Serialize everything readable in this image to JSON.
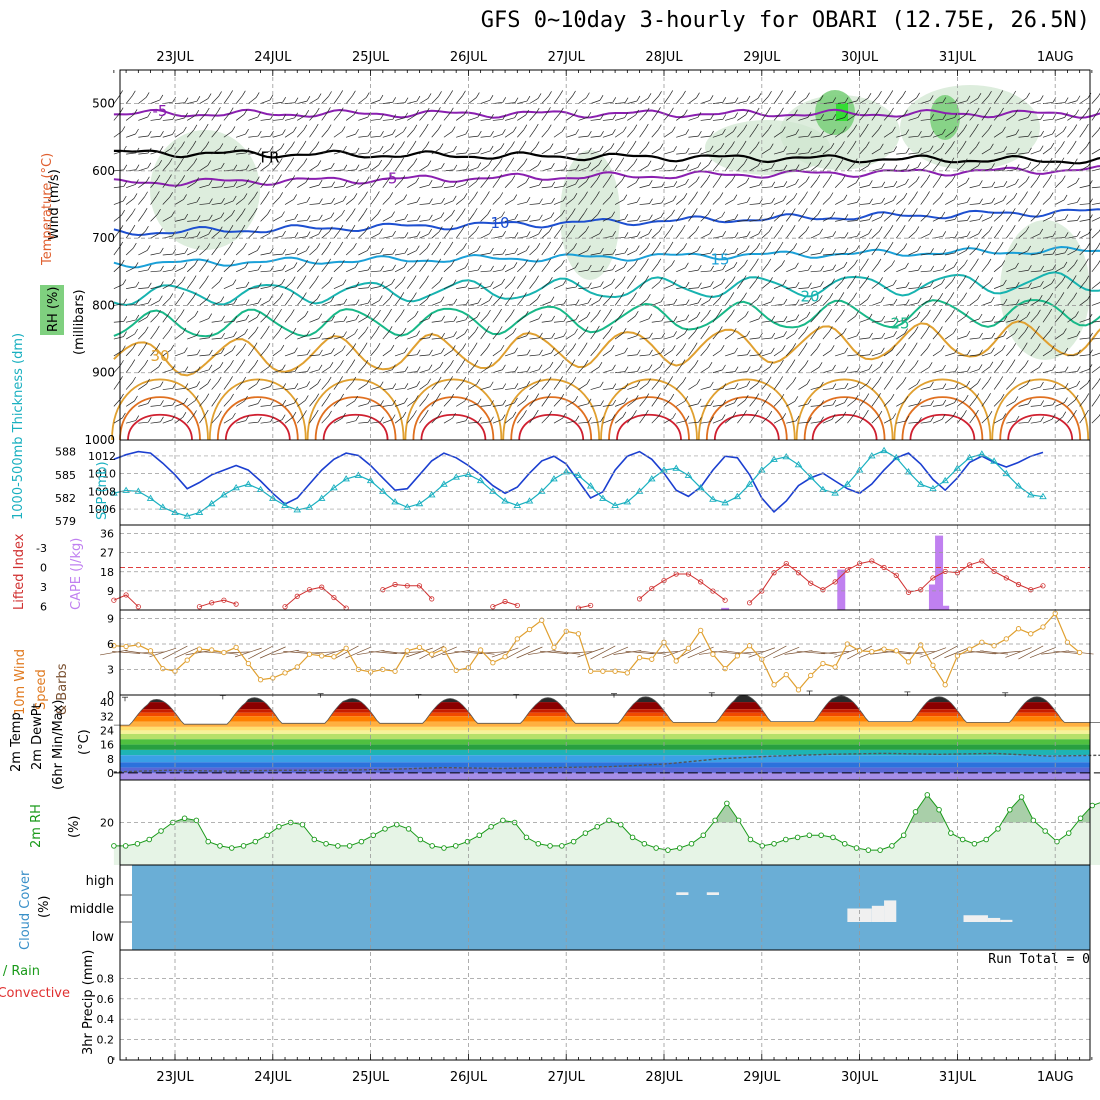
{
  "title": "GFS 0~10day 3-hourly for OBARI (12.75E, 26.5N)",
  "run_total": "Run Total = 0",
  "dates": [
    "23JUL",
    "24JUL",
    "25JUL",
    "26JUL",
    "27JUL",
    "28JUL",
    "29JUL",
    "30JUL",
    "31JUL",
    "1AUG"
  ],
  "chart_data": [
    {
      "type": "line",
      "panel": "upper-air",
      "labels": {
        "wind": "Wind (m/s)",
        "temperature": "Temperature (°C)",
        "pressure": "(millibars)",
        "rh": "RH (%)"
      },
      "ylim": [
        1000,
        450
      ],
      "yticks": [
        500,
        600,
        700,
        800,
        900,
        1000
      ],
      "contour_labels": [
        "-5",
        "FR",
        "10",
        "15",
        "20",
        "25",
        "30"
      ],
      "isotherms": [
        {
          "name": "-5",
          "color": "#8a1fb0",
          "p_start": 515,
          "p_end": 515
        },
        {
          "name": "FR",
          "color": "#000000",
          "p_start": 573,
          "p_end": 585
        },
        {
          "name": "-5",
          "color": "#8a1fb0",
          "p_start": 618,
          "p_end": 598
        },
        {
          "name": "10",
          "color": "#1d4fd0",
          "p_start": 692,
          "p_end": 660
        },
        {
          "name": "15",
          "color": "#1aa0d8",
          "p_start": 738,
          "p_end": 718
        },
        {
          "name": "20",
          "color": "#17b3b0",
          "p_start": 785,
          "p_end": 765
        },
        {
          "name": "25",
          "color": "#18b888",
          "p_start": 830,
          "p_end": 808
        },
        {
          "name": "30",
          "color": "#e0a030",
          "p_start": 880,
          "p_end": 848
        }
      ]
    },
    {
      "type": "line",
      "panel": "thickness-slp",
      "labels": {
        "thickness": "1000-500mb Thickness (dm)",
        "slp": "SLP (mb)"
      },
      "thickness_ticks": [
        579,
        582,
        585,
        588
      ],
      "slp_ticks": [
        1006,
        1008,
        1010,
        1012
      ],
      "series": [
        {
          "name": "1000-500mb Thickness (dm)",
          "color": "#1b3fd0",
          "values": [
            587.0,
            587.6,
            588.0,
            587.8,
            586.5,
            585.0,
            583.2,
            584.0,
            585.0,
            585.6,
            586.2,
            585.6,
            584.2,
            582.6,
            581.2,
            582.0,
            583.8,
            585.6,
            587.0,
            587.8,
            587.5,
            586.2,
            584.6,
            583.0,
            583.2,
            585.0,
            586.8,
            587.8,
            587.2,
            586.2,
            585.0,
            583.6,
            582.6,
            583.4,
            585.2,
            586.8,
            587.4,
            586.4,
            584.2,
            582.0,
            582.8,
            585.6,
            587.4,
            588.0,
            587.0,
            585.2,
            583.0,
            582.2,
            583.4,
            585.6,
            587.4,
            587.2,
            585.0,
            582.0,
            580.2,
            581.6,
            583.6,
            584.6,
            585.2,
            584.2,
            583.2,
            582.6,
            583.8,
            585.6,
            587.2,
            587.8,
            586.4,
            584.4,
            583.0,
            584.6,
            586.6,
            587.4,
            586.6,
            586.0,
            586.6,
            587.4,
            587.9
          ]
        },
        {
          "name": "SLP (mb)",
          "color": "#1ab0c0",
          "values": [
            1007.8,
            1008.1,
            1008.0,
            1007.2,
            1006.2,
            1005.6,
            1005.2,
            1005.6,
            1006.6,
            1007.6,
            1008.4,
            1008.8,
            1008.2,
            1007.2,
            1006.4,
            1005.9,
            1006.2,
            1007.2,
            1008.4,
            1009.4,
            1009.8,
            1009.2,
            1008.0,
            1006.8,
            1006.2,
            1006.6,
            1007.6,
            1008.8,
            1009.6,
            1009.9,
            1009.2,
            1008.0,
            1006.9,
            1006.4,
            1006.9,
            1008.0,
            1009.4,
            1010.2,
            1009.8,
            1008.6,
            1007.2,
            1006.4,
            1006.8,
            1008.0,
            1009.4,
            1010.4,
            1010.6,
            1009.8,
            1008.4,
            1007.1,
            1006.7,
            1007.4,
            1008.8,
            1010.4,
            1011.6,
            1011.9,
            1011.0,
            1009.6,
            1008.2,
            1007.8,
            1008.8,
            1010.4,
            1012.0,
            1012.6,
            1011.8,
            1010.2,
            1008.8,
            1008.3,
            1009.2,
            1010.6,
            1011.8,
            1012.2,
            1011.4,
            1010.0,
            1008.6,
            1007.6,
            1007.4
          ]
        }
      ]
    },
    {
      "type": "bar",
      "panel": "cape-li",
      "labels": {
        "li": "Lifted Index",
        "cape": "CAPE (J/kg)"
      },
      "li_ticks": [
        "-3",
        "0",
        "3",
        "6"
      ],
      "cape_ticks": [
        9,
        18,
        27,
        36
      ],
      "ylim": [
        0,
        40
      ],
      "cape": [
        {
          "x": 53.0,
          "value": 1
        },
        {
          "x": 62.5,
          "value": 19
        },
        {
          "x": 70.0,
          "value": 12
        },
        {
          "x": 70.5,
          "value": 35
        },
        {
          "x": 71.0,
          "value": 2
        }
      ],
      "lifted_index": [
        5.0,
        4.2,
        6.0,
        6.4,
        6.5,
        6.5,
        6.4,
        6.0,
        5.4,
        5.0,
        5.6,
        6.4,
        6.5,
        6.4,
        6.0,
        4.4,
        3.4,
        3.0,
        4.6,
        6.2,
        6.4,
        6.5,
        3.4,
        2.6,
        2.8,
        2.8,
        4.8,
        6.4,
        6.5,
        6.5,
        6.4,
        6.0,
        5.2,
        5.8,
        6.4,
        6.5,
        6.5,
        6.4,
        6.2,
        5.8,
        6.4,
        6.5,
        6.4,
        4.8,
        3.2,
        2.0,
        1.0,
        1.0,
        2.2,
        3.6,
        5.0,
        6.4,
        5.4,
        3.6,
        0.8,
        -0.6,
        0.8,
        2.4,
        3.4,
        2.2,
        0.4,
        -0.6,
        -1.0,
        0.0,
        1.2,
        3.8,
        3.4,
        1.6,
        0.6,
        0.8,
        -0.4,
        -1.0,
        0.6,
        1.6,
        2.6,
        3.4,
        2.8
      ]
    },
    {
      "type": "line",
      "panel": "wind10m",
      "labels": {
        "main": "10m Wind",
        "sub": "Speed & Barbs (m/s)"
      },
      "ylim": [
        0,
        9
      ],
      "yticks": [
        0,
        3,
        6,
        9
      ],
      "series": [
        {
          "name": "10m Wind Speed",
          "color": "#e0a030",
          "values": [
            5.8,
            5.7,
            5.9,
            5.2,
            3.1,
            2.8,
            4.1,
            5.4,
            5.3,
            5.0,
            5.6,
            3.7,
            1.8,
            2.0,
            2.6,
            3.3,
            4.8,
            4.6,
            4.5,
            5.5,
            3.0,
            2.7,
            3.0,
            2.8,
            5.2,
            5.6,
            4.8,
            5.4,
            2.9,
            3.2,
            5.3,
            3.8,
            4.5,
            6.6,
            7.7,
            8.8,
            5.6,
            7.5,
            7.2,
            2.8,
            2.8,
            2.8,
            2.6,
            4.4,
            4.2,
            6.2,
            4.0,
            5.5,
            7.6,
            4.8,
            3.1,
            4.6,
            5.8,
            4.2,
            1.2,
            2.4,
            0.6,
            2.3,
            3.7,
            3.3,
            6.0,
            5.2,
            5.1,
            5.4,
            5.2,
            3.9,
            5.9,
            3.5,
            1.2,
            4.6,
            5.4,
            6.2,
            5.8,
            6.6,
            7.8,
            7.2,
            8.0,
            9.6,
            6.2,
            5.0,
            3.6,
            4.8,
            6.4,
            7.1
          ]
        }
      ]
    },
    {
      "type": "area",
      "panel": "temp2m",
      "labels": {
        "temp": "2m Temp",
        "dewpt": "2m DewPt",
        "minmax": "(6hr Min/Max)",
        "unit": "(°C)"
      },
      "ylim": [
        -4,
        44
      ],
      "yticks": [
        0,
        8,
        16,
        24,
        32,
        40
      ],
      "temp_max": [
        40.5,
        41.5,
        42.5,
        42,
        42,
        42.5,
        43,
        44,
        43.5,
        43
      ],
      "temp_min": [
        27,
        27.5,
        28,
        28,
        28,
        28,
        28.5,
        29,
        29,
        28.5
      ],
      "dewpoint": [
        0.5,
        1.5,
        1.0,
        1.5,
        1.5,
        2.0,
        3.0,
        2.5,
        3.0,
        3.5,
        5.0,
        8.0,
        9.5,
        10.5,
        11.0,
        10.5,
        11.0,
        9.5,
        10.0
      ]
    },
    {
      "type": "area",
      "panel": "rh2m",
      "labels": {
        "main": "2m RH",
        "unit": "(%)"
      },
      "ylim": [
        0,
        40
      ],
      "yticks": [
        20
      ],
      "series": [
        {
          "name": "2m RH",
          "color": "#1a9a1a",
          "values": [
            9,
            9,
            10,
            12,
            16,
            20,
            22,
            21,
            11,
            9,
            8,
            9,
            11,
            14,
            18,
            20,
            19,
            12,
            10,
            9,
            9,
            11,
            14,
            17,
            19,
            17,
            12,
            9,
            8,
            9,
            11,
            14,
            18,
            21,
            20,
            13,
            10,
            9,
            9,
            11,
            15,
            18,
            21,
            19,
            13,
            10,
            8,
            7,
            8,
            10,
            14,
            21,
            29,
            21,
            12,
            9,
            10,
            12,
            13,
            14,
            14,
            13,
            10,
            8,
            7,
            7,
            9,
            14,
            25,
            33,
            26,
            15,
            12,
            10,
            12,
            17,
            26,
            32,
            21,
            16,
            11,
            15,
            22,
            28,
            30
          ]
        }
      ]
    },
    {
      "type": "bar",
      "panel": "cloud",
      "labels": {
        "main": "Cloud Cover",
        "unit": "(%)",
        "levels": [
          "high",
          "middle",
          "low"
        ]
      },
      "cells": [
        {
          "level": "high",
          "x": 49.0,
          "w": 1.0,
          "frac": 0.1
        },
        {
          "level": "high",
          "x": 51.5,
          "w": 1.0,
          "frac": 0.1
        },
        {
          "level": "middle",
          "x": 63.0,
          "w": 2.0,
          "frac": 0.5
        },
        {
          "level": "middle",
          "x": 65.0,
          "w": 1.0,
          "frac": 0.6
        },
        {
          "level": "middle",
          "x": 66.0,
          "w": 1.0,
          "frac": 0.8
        },
        {
          "level": "middle",
          "x": 72.5,
          "w": 2.0,
          "frac": 0.25
        },
        {
          "level": "middle",
          "x": 74.5,
          "w": 1.0,
          "frac": 0.15
        },
        {
          "level": "middle",
          "x": 75.5,
          "w": 1.0,
          "frac": 0.08
        }
      ]
    },
    {
      "type": "bar",
      "panel": "precip",
      "labels": {
        "main": "Total / Rain",
        "conv": "Convective",
        "unit": "3hr Precip (mm)"
      },
      "ylim": [
        0,
        1
      ],
      "yticks": [
        "0",
        "0.2",
        "0.4",
        "0.6",
        "0.8"
      ],
      "values": []
    }
  ],
  "colors": {
    "temp_bands": [
      "#2a2a2a",
      "#8b0000",
      "#c81e00",
      "#f04a00",
      "#ff8000",
      "#ffb040",
      "#ffe070",
      "#f6f29a",
      "#b6e06a",
      "#50c040",
      "#28a040",
      "#1eb4b4",
      "#3aa0e6",
      "#2c72dc",
      "#5a68d6",
      "#a68ee8"
    ],
    "cloud_bg": "#6aaed6",
    "rh_green": "#1a9a1a"
  }
}
